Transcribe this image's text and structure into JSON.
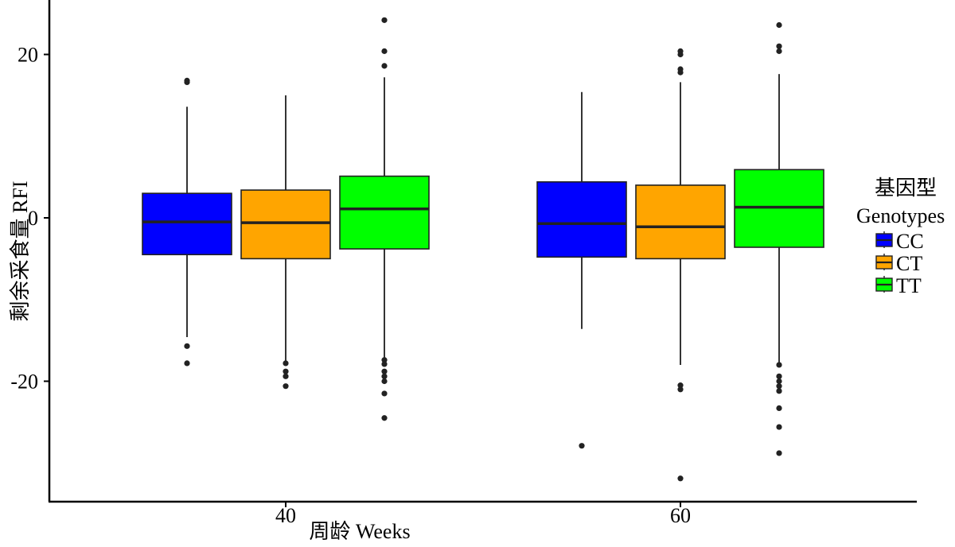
{
  "chart_data": {
    "type": "boxplot",
    "title": "",
    "xlabel": "周龄 Weeks",
    "ylabel": "剩余采食量 RFI",
    "categories": [
      "40",
      "60"
    ],
    "ylim": [
      -35,
      25
    ],
    "yticks": [
      {
        "value": 20,
        "label": "20"
      },
      {
        "value": 0,
        "label": "0"
      },
      {
        "value": -20,
        "label": "-20"
      }
    ],
    "grid": false,
    "legend": {
      "position": "right",
      "title_lines": [
        "基因型",
        "Genotypes"
      ]
    },
    "series": [
      {
        "name": "CC",
        "color": "#0000ff",
        "boxes": [
          {
            "category": "40",
            "whisker_low": -14.6,
            "q1": -4.5,
            "median": -0.5,
            "q3": 3.0,
            "whisker_high": 13.6,
            "outliers": [
              16.6,
              16.8,
              -15.7,
              -17.8
            ]
          },
          {
            "category": "60",
            "whisker_low": -13.6,
            "q1": -4.8,
            "median": -0.7,
            "q3": 4.4,
            "whisker_high": 15.4,
            "outliers": [
              -27.9
            ]
          }
        ]
      },
      {
        "name": "CT",
        "color": "#ffa500",
        "boxes": [
          {
            "category": "40",
            "whisker_low": -17.6,
            "q1": -5.0,
            "median": -0.6,
            "q3": 3.4,
            "whisker_high": 15.0,
            "outliers": [
              -17.8,
              -18.8,
              -19.4,
              -20.6
            ]
          },
          {
            "category": "60",
            "whisker_low": -18.0,
            "q1": -5.0,
            "median": -1.1,
            "q3": 4.0,
            "whisker_high": 16.6,
            "outliers": [
              17.8,
              18.2,
              20.0,
              20.4,
              -20.5,
              -21.0,
              -31.9
            ]
          }
        ]
      },
      {
        "name": "TT",
        "color": "#00ff00",
        "boxes": [
          {
            "category": "40",
            "whisker_low": -17.4,
            "q1": -3.8,
            "median": 1.1,
            "q3": 5.1,
            "whisker_high": 17.2,
            "outliers": [
              18.6,
              20.4,
              24.2,
              -17.4,
              -17.9,
              -18.8,
              -19.4,
              -20.0,
              -21.5,
              -24.5
            ]
          },
          {
            "category": "60",
            "whisker_low": -18.0,
            "q1": -3.6,
            "median": 1.3,
            "q3": 5.9,
            "whisker_high": 17.6,
            "outliers": [
              20.4,
              21.0,
              23.6,
              -18.0,
              -19.4,
              -20.0,
              -20.6,
              -21.2,
              -23.3,
              -25.6,
              -28.8
            ]
          }
        ]
      }
    ]
  }
}
